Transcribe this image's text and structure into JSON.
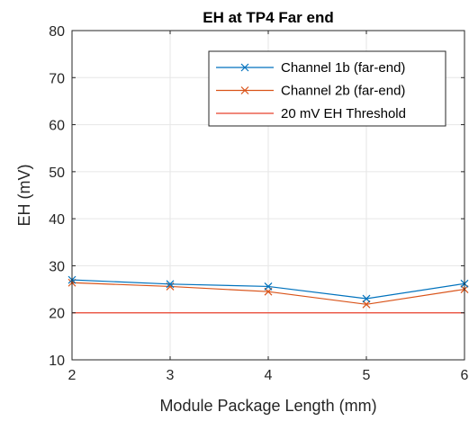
{
  "chart_data": {
    "type": "line",
    "title": "EH at TP4 Far end",
    "xlabel": "Module Package Length (mm)",
    "ylabel": "EH (mV)",
    "xlim": [
      2,
      6
    ],
    "ylim": [
      10,
      80
    ],
    "xticks": [
      2,
      3,
      4,
      5,
      6
    ],
    "yticks": [
      10,
      20,
      30,
      40,
      50,
      60,
      70,
      80
    ],
    "grid": true,
    "legend_position": "top-right",
    "x": [
      2,
      3,
      4,
      5,
      6
    ],
    "series": [
      {
        "name": "Channel 1b (far-end)",
        "color": "#0072BD",
        "marker": "x",
        "values": [
          27.0,
          26.1,
          25.6,
          23.0,
          26.2
        ]
      },
      {
        "name": "Channel 2b (far-end)",
        "color": "#D95319",
        "marker": "x",
        "values": [
          26.4,
          25.6,
          24.5,
          21.8,
          25.0
        ]
      },
      {
        "name": "20 mV EH Threshold",
        "color": "#E8412C",
        "marker": "none",
        "values": [
          20,
          20,
          20,
          20,
          20
        ]
      }
    ]
  }
}
